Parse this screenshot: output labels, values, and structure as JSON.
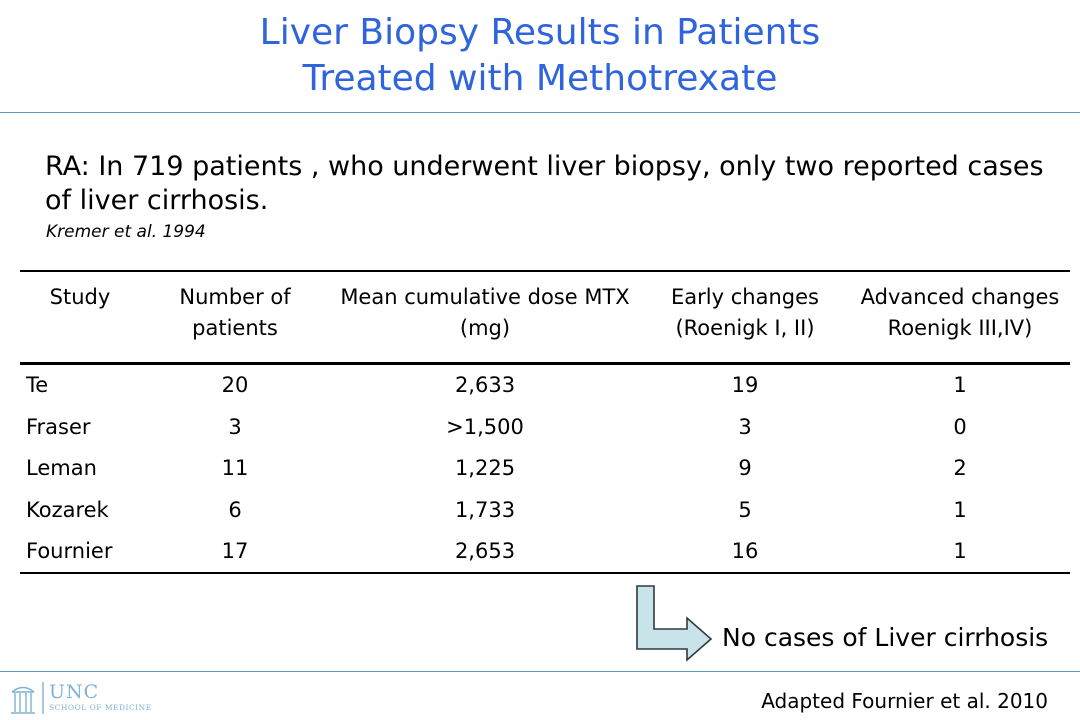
{
  "title": {
    "line1": "Liver Biopsy Results in Patients",
    "line2": "Treated with Methotrexate"
  },
  "intro": {
    "text": "RA: In 719 patients , who underwent liver biopsy, only two reported cases of liver cirrhosis.",
    "citation": "Kremer et al. 1994"
  },
  "table": {
    "headers": [
      "Study",
      "Number of patients",
      "Mean cumulative dose MTX (mg)",
      "Early changes (Roenigk I, II)",
      "Advanced changes Roenigk III,IV)"
    ],
    "rows": [
      [
        "Te",
        "20",
        "2,633",
        "19",
        "1"
      ],
      [
        "Fraser",
        "3",
        ">1,500",
        "3",
        "0"
      ],
      [
        "Leman",
        "11",
        "1,225",
        "9",
        "2"
      ],
      [
        "Kozarek",
        "6",
        "1,733",
        "5",
        "1"
      ],
      [
        "Fournier",
        "17",
        "2,653",
        "16",
        "1"
      ]
    ]
  },
  "callout": {
    "text": "No cases of Liver cirrhosis",
    "icon": "bent-arrow-icon"
  },
  "footer": {
    "logo_main": "UNC",
    "logo_sub": "SCHOOL OF MEDICINE",
    "source": "Adapted Fournier et al. 2010"
  },
  "colors": {
    "title": "#2f64dc",
    "rule": "#5a9bc2",
    "arrow_fill": "#c9e3ea",
    "logo": "#7fb2d6"
  }
}
